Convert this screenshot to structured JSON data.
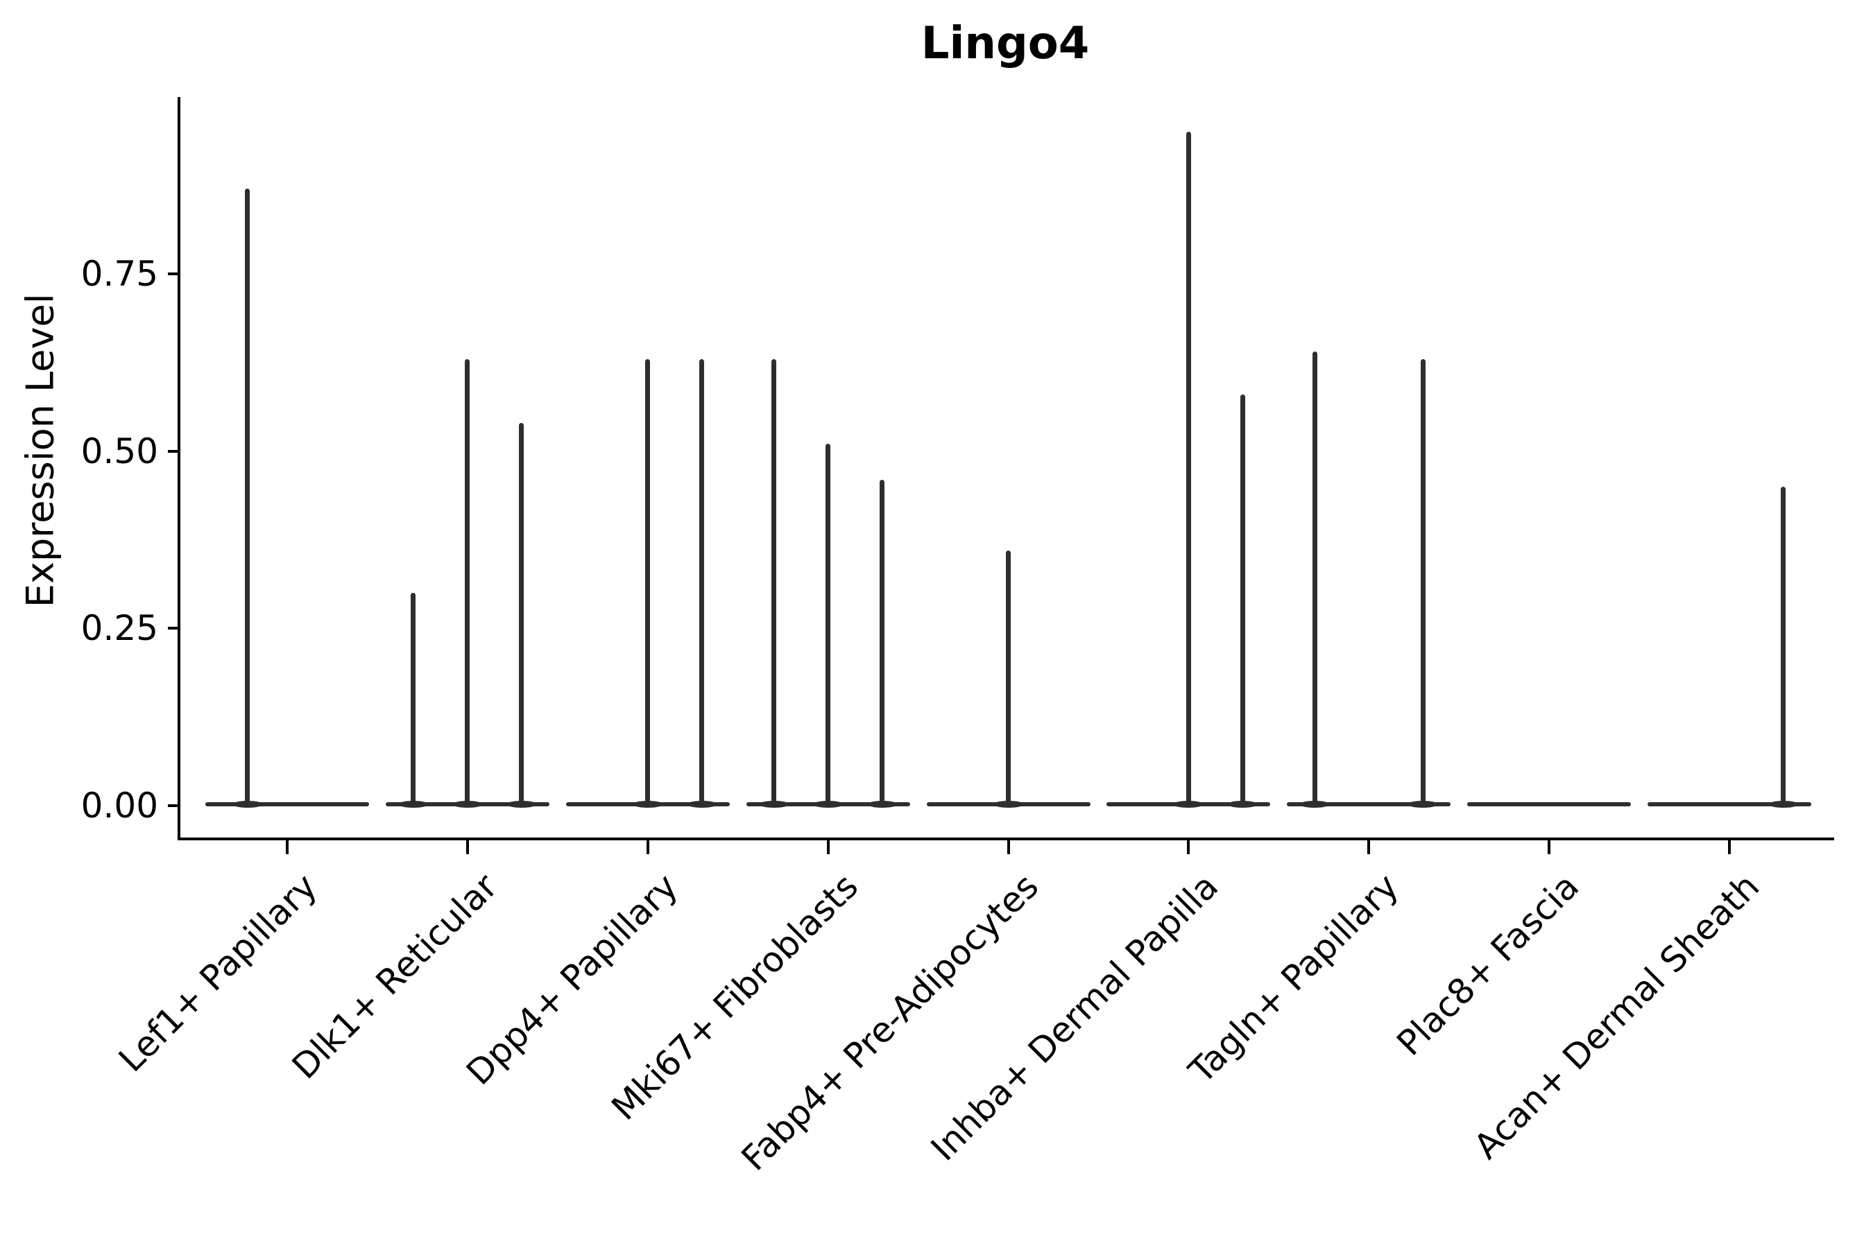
{
  "figure": {
    "title": "Lingo4",
    "background_color": "#ffffff",
    "axis_color": "#000000",
    "violin_color": "#2e2e2e"
  },
  "chart_data": {
    "type": "violin",
    "title": "Lingo4",
    "xlabel": "",
    "ylabel": "Expression Level",
    "ylim": [
      0,
      1.0
    ],
    "grid": false,
    "legend": null,
    "ytick_labels": [
      "0.00",
      "0.25",
      "0.50",
      "0.75"
    ],
    "ytick_values": [
      0.0,
      0.25,
      0.5,
      0.75
    ],
    "categories": [
      "Lef1+ Papillary",
      "Dlk1+ Reticular",
      "Dpp4+ Papillary",
      "Mki67+ Fibroblasts",
      "Fabp4+ Pre-Adipocytes",
      "Inhba+ Dermal Papilla",
      "Tagln+ Papillary",
      "Plac8+ Fascia",
      "Acan+ Dermal Sheath"
    ],
    "violins": [
      {
        "category": "Lef1+ Papillary",
        "baseline_value": 0,
        "spikes": [
          {
            "pos": -0.22,
            "max": 0.87
          }
        ]
      },
      {
        "category": "Dlk1+ Reticular",
        "baseline_value": 0,
        "spikes": [
          {
            "pos": -0.3,
            "max": 0.3
          },
          {
            "pos": 0.0,
            "max": 0.63
          },
          {
            "pos": 0.3,
            "max": 0.54
          }
        ]
      },
      {
        "category": "Dpp4+ Papillary",
        "baseline_value": 0,
        "spikes": [
          {
            "pos": 0.0,
            "max": 0.63
          },
          {
            "pos": 0.3,
            "max": 0.63
          }
        ]
      },
      {
        "category": "Mki67+ Fibroblasts",
        "baseline_value": 0,
        "spikes": [
          {
            "pos": -0.3,
            "max": 0.63
          },
          {
            "pos": 0.0,
            "max": 0.51
          },
          {
            "pos": 0.3,
            "max": 0.46
          }
        ]
      },
      {
        "category": "Fabp4+ Pre-Adipocytes",
        "baseline_value": 0,
        "spikes": [
          {
            "pos": 0.0,
            "max": 0.36
          }
        ]
      },
      {
        "category": "Inhba+ Dermal Papilla",
        "baseline_value": 0,
        "spikes": [
          {
            "pos": 0.0,
            "max": 0.95
          },
          {
            "pos": 0.3,
            "max": 0.58
          }
        ]
      },
      {
        "category": "Tagln+ Papillary",
        "baseline_value": 0,
        "spikes": [
          {
            "pos": -0.3,
            "max": 0.64
          },
          {
            "pos": 0.3,
            "max": 0.63
          }
        ]
      },
      {
        "category": "Plac8+ Fascia",
        "baseline_value": 0,
        "spikes": []
      },
      {
        "category": "Acan+ Dermal Sheath",
        "baseline_value": 0,
        "spikes": [
          {
            "pos": 0.3,
            "max": 0.45
          }
        ]
      }
    ]
  }
}
